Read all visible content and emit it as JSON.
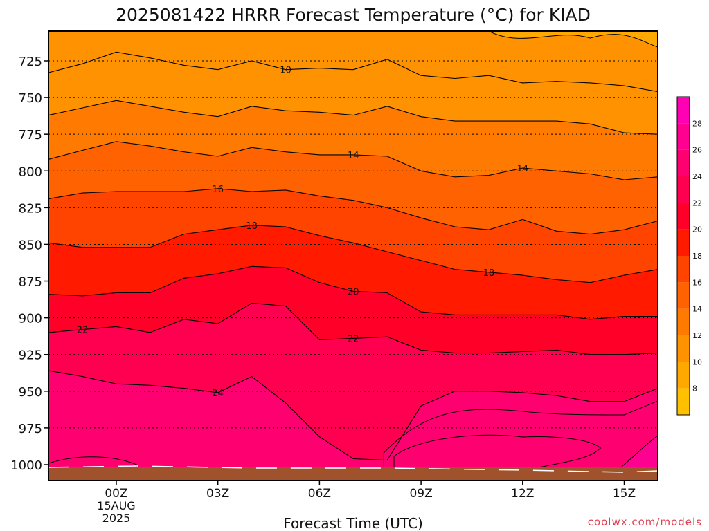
{
  "chart_data": {
    "type": "contour",
    "title": "2025081422 HRRR Forecast Temperature (°C) for KIAD",
    "xlabel": "Forecast Time (UTC)",
    "ylabel": "",
    "credit": "coolwx.com/models",
    "x_ticks": [
      {
        "hour": 0,
        "label": "00Z"
      },
      {
        "hour": 3,
        "label": "03Z"
      },
      {
        "hour": 6,
        "label": "06Z"
      },
      {
        "hour": 9,
        "label": "09Z"
      },
      {
        "hour": 12,
        "label": "12Z"
      },
      {
        "hour": 15,
        "label": "15Z"
      }
    ],
    "date_label": [
      "15AUG",
      "2025"
    ],
    "xlim": [
      -2,
      16
    ],
    "y_ticks": [
      725,
      750,
      775,
      800,
      825,
      850,
      875,
      900,
      925,
      950,
      975,
      1000
    ],
    "ylim": [
      1005,
      702
    ],
    "y_grid": "dotted",
    "colorbar": {
      "levels": [
        6,
        8,
        10,
        12,
        14,
        16,
        18,
        20,
        22,
        24,
        26,
        28,
        30
      ],
      "tick_labels": [
        8,
        10,
        12,
        14,
        16,
        18,
        20,
        22,
        24,
        26,
        28
      ],
      "colors": [
        "#ffc000",
        "#ffa800",
        "#ff9200",
        "#ff7a00",
        "#ff6200",
        "#ff4400",
        "#ff1a00",
        "#ff0028",
        "#ff0050",
        "#ff0070",
        "#ff0090",
        "#ff00b4"
      ]
    },
    "contour_hours": [
      -2,
      -1,
      0,
      1,
      2,
      3,
      4,
      5,
      6,
      7,
      8,
      9,
      10,
      11,
      12,
      13,
      14,
      15,
      16
    ],
    "contours": [
      {
        "value": 10,
        "pressure": [
          733,
          727,
          719,
          723,
          728,
          731,
          725,
          731,
          730,
          731,
          724,
          735,
          737,
          735,
          740,
          739,
          740,
          742,
          746
        ],
        "label_at": 5
      },
      {
        "value": 12,
        "pressure": [
          762,
          757,
          752,
          756,
          760,
          763,
          756,
          759,
          760,
          762,
          756,
          763,
          766,
          766,
          766,
          766,
          768,
          774,
          775
        ]
      },
      {
        "value": 14,
        "pressure": [
          792,
          786,
          780,
          783,
          787,
          790,
          784,
          787,
          789,
          789,
          790,
          800,
          804,
          803,
          798,
          800,
          802,
          806,
          804
        ],
        "label_at": [
          7,
          12
        ]
      },
      {
        "value": 16,
        "pressure": [
          819,
          815,
          814,
          814,
          814,
          812,
          814,
          813,
          817,
          820,
          825,
          832,
          838,
          840,
          833,
          841,
          843,
          840,
          834
        ],
        "label_at": 3
      },
      {
        "value": 18,
        "pressure": [
          849,
          852,
          852,
          852,
          843,
          840,
          837,
          838,
          844,
          849,
          855,
          861,
          867,
          869,
          871,
          874,
          876,
          871,
          867
        ],
        "label_at": [
          4,
          11
        ]
      },
      {
        "value": 20,
        "pressure": [
          884,
          885,
          883,
          883,
          873,
          870,
          865,
          866,
          876,
          882,
          883,
          896,
          898,
          898,
          898,
          898,
          901,
          899,
          899
        ],
        "label_at": 7
      },
      {
        "value": 22,
        "pressure": [
          910,
          908,
          906,
          910,
          901,
          904,
          890,
          892,
          915,
          914,
          913,
          922,
          924,
          924,
          923,
          922,
          925,
          925,
          924
        ],
        "label_at": [
          -1,
          7
        ]
      },
      {
        "value": 24,
        "pressure": [
          936,
          940,
          945,
          946,
          948,
          951,
          940,
          958,
          981,
          996,
          997,
          960,
          950,
          950,
          951,
          953,
          957,
          957,
          948
        ],
        "label_at": 3
      }
    ]
  }
}
